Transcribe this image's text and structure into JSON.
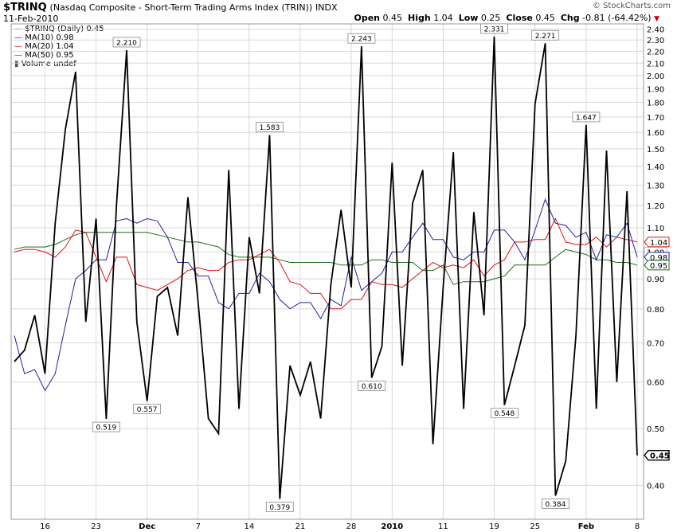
{
  "header": {
    "symbol": "$TRINQ",
    "description": "(Nasdaq Composite - Short-Term Trading Arms Index (TRIN))",
    "exchange": "INDX",
    "date": "11-Feb-2010",
    "brand": "© StockCharts.com",
    "ohlc": {
      "open_label": "Open",
      "open": "0.45",
      "high_label": "High",
      "high": "1.04",
      "low_label": "Low",
      "low": "0.25",
      "close_label": "Close",
      "close": "0.45",
      "chg_label": "Chg",
      "chg": "-0.81 (-64.42%)"
    }
  },
  "legend": {
    "items": [
      {
        "label": "$TRINQ (Daily) 0.45",
        "color": "#000000"
      },
      {
        "label": "MA(10) 0.98",
        "color": "#1f1f9e"
      },
      {
        "label": "MA(20) 1.04",
        "color": "#e01010"
      },
      {
        "label": "MA(50) 0.95",
        "color": "#1a6e1a"
      },
      {
        "label": "Volume undef",
        "color": "#555555"
      }
    ]
  },
  "chart_data": {
    "type": "line",
    "title": "$TRINQ (Nasdaq Composite - Short-Term Trading Arms Index (TRIN))",
    "xlabel": "",
    "ylabel": "",
    "y_scale": "log",
    "ylim": [
      0.35,
      2.45
    ],
    "yticks": [
      0.4,
      0.5,
      0.6,
      0.7,
      0.8,
      0.9,
      1.0,
      1.1,
      1.2,
      1.3,
      1.4,
      1.5,
      1.6,
      1.7,
      1.8,
      1.9,
      2.0,
      2.1,
      2.2,
      2.3,
      2.4
    ],
    "ytick_labels": [
      "0.40",
      "0.50",
      "0.60",
      "0.70",
      "0.80",
      "0.90",
      "1.00",
      "1.10",
      "1.20",
      "1.30",
      "1.40",
      "1.50",
      "1.60",
      "1.70",
      "1.80",
      "1.90",
      "2.00",
      "2.10",
      "2.20",
      "2.30",
      "2.40"
    ],
    "x_tick_labels": [
      {
        "label": "16",
        "i": 3
      },
      {
        "label": "23",
        "i": 8
      },
      {
        "label": "Dec",
        "i": 13
      },
      {
        "label": "7",
        "i": 18
      },
      {
        "label": "14",
        "i": 23
      },
      {
        "label": "21",
        "i": 28
      },
      {
        "label": "28",
        "i": 33
      },
      {
        "label": "2010",
        "i": 37
      },
      {
        "label": "11",
        "i": 42
      },
      {
        "label": "19",
        "i": 47
      },
      {
        "label": "25",
        "i": 51
      },
      {
        "label": "Feb",
        "i": 56
      },
      {
        "label": "8",
        "i": 61
      }
    ],
    "grid": true,
    "legend_position": "top-left",
    "series": [
      {
        "name": "$TRINQ (Daily) 0.45",
        "color": "#000000",
        "values": [
          0.65,
          0.68,
          0.78,
          0.62,
          1.12,
          1.62,
          2.03,
          0.76,
          1.14,
          0.519,
          1.2,
          2.21,
          0.76,
          0.557,
          0.84,
          0.87,
          0.72,
          1.24,
          0.82,
          0.52,
          0.49,
          1.38,
          0.54,
          1.06,
          0.85,
          1.583,
          0.379,
          0.64,
          0.57,
          0.65,
          0.52,
          0.88,
          1.18,
          0.87,
          2.243,
          0.61,
          0.69,
          1.42,
          0.64,
          1.21,
          1.38,
          0.47,
          0.87,
          1.48,
          0.54,
          1.17,
          0.78,
          2.331,
          0.548,
          0.64,
          0.75,
          1.79,
          2.271,
          0.384,
          0.44,
          0.72,
          1.647,
          0.54,
          1.49,
          0.6,
          1.27,
          0.45
        ]
      },
      {
        "name": "MA(10) 0.98",
        "color": "#1f1f9e",
        "values": [
          0.72,
          0.62,
          0.63,
          0.58,
          0.62,
          0.75,
          0.9,
          0.93,
          0.97,
          0.97,
          1.13,
          1.14,
          1.12,
          1.14,
          1.13,
          1.06,
          0.96,
          0.96,
          0.91,
          0.91,
          0.82,
          0.8,
          0.85,
          0.85,
          0.92,
          0.89,
          0.83,
          0.8,
          0.82,
          0.82,
          0.77,
          0.83,
          0.81,
          0.98,
          0.86,
          0.89,
          0.92,
          1.0,
          1.0,
          1.06,
          1.12,
          1.05,
          1.05,
          0.98,
          0.97,
          1.0,
          1.0,
          1.09,
          1.09,
          1.04,
          0.97,
          1.09,
          1.23,
          1.12,
          1.11,
          1.06,
          1.08,
          0.97,
          1.07,
          1.06,
          1.12,
          0.98
        ]
      },
      {
        "name": "MA(20) 1.04",
        "color": "#e01010",
        "values": [
          1.0,
          1.01,
          1.01,
          1.0,
          0.98,
          1.02,
          1.09,
          1.08,
          0.98,
          0.89,
          0.98,
          0.98,
          0.88,
          0.87,
          0.86,
          0.88,
          0.9,
          0.93,
          0.94,
          0.93,
          0.93,
          0.96,
          0.97,
          0.97,
          0.99,
          1.01,
          0.96,
          0.89,
          0.88,
          0.85,
          0.85,
          0.8,
          0.8,
          0.83,
          0.83,
          0.89,
          0.88,
          0.88,
          0.87,
          0.9,
          0.93,
          0.96,
          0.94,
          0.95,
          0.94,
          0.97,
          0.91,
          0.95,
          0.97,
          1.04,
          1.04,
          1.05,
          1.05,
          1.14,
          1.04,
          1.03,
          1.03,
          1.06,
          1.02,
          1.06,
          1.05,
          1.04
        ]
      },
      {
        "name": "MA(50) 0.95",
        "color": "#1a6e1a",
        "values": [
          1.01,
          1.02,
          1.02,
          1.02,
          1.03,
          1.05,
          1.07,
          1.08,
          1.08,
          1.08,
          1.08,
          1.08,
          1.08,
          1.08,
          1.07,
          1.06,
          1.05,
          1.04,
          1.04,
          1.03,
          1.02,
          0.99,
          0.98,
          0.98,
          0.98,
          0.98,
          0.97,
          0.96,
          0.96,
          0.96,
          0.96,
          0.96,
          0.95,
          0.95,
          0.95,
          0.97,
          0.97,
          0.96,
          0.96,
          0.96,
          0.93,
          0.93,
          0.95,
          0.88,
          0.89,
          0.89,
          0.89,
          0.9,
          0.91,
          0.95,
          0.95,
          0.95,
          0.95,
          0.98,
          1.01,
          1.0,
          0.99,
          0.97,
          0.97,
          0.96,
          0.96,
          0.95
        ]
      }
    ],
    "annotations": [
      {
        "i": 9,
        "value": 0.519,
        "label": "0.519",
        "pos": "below"
      },
      {
        "i": 11,
        "value": 2.21,
        "label": "2.210",
        "pos": "above"
      },
      {
        "i": 13,
        "value": 0.557,
        "label": "0.557",
        "pos": "below"
      },
      {
        "i": 25,
        "value": 1.583,
        "label": "1.583",
        "pos": "above"
      },
      {
        "i": 26,
        "value": 0.379,
        "label": "0.379",
        "pos": "below"
      },
      {
        "i": 34,
        "value": 2.243,
        "label": "2.243",
        "pos": "above"
      },
      {
        "i": 35,
        "value": 0.61,
        "label": "0.610",
        "pos": "below"
      },
      {
        "i": 47,
        "value": 2.331,
        "label": "2.331",
        "pos": "above"
      },
      {
        "i": 48,
        "value": 0.548,
        "label": "0.548",
        "pos": "below"
      },
      {
        "i": 52,
        "value": 2.271,
        "label": "2.271",
        "pos": "above"
      },
      {
        "i": 53,
        "value": 0.384,
        "label": "0.384",
        "pos": "below"
      },
      {
        "i": 56,
        "value": 1.647,
        "label": "1.647",
        "pos": "above"
      }
    ],
    "last_value_tags": [
      {
        "value": 1.04,
        "label": "1.04",
        "color": "#e01010"
      },
      {
        "value": 0.98,
        "label": "0.98",
        "color": "#1f1f9e"
      },
      {
        "value": 0.95,
        "label": "0.95",
        "color": "#1a6e1a"
      },
      {
        "value": 0.45,
        "label": "0.45",
        "color": "#000000"
      }
    ],
    "hidden_tag_label": "1.00"
  }
}
